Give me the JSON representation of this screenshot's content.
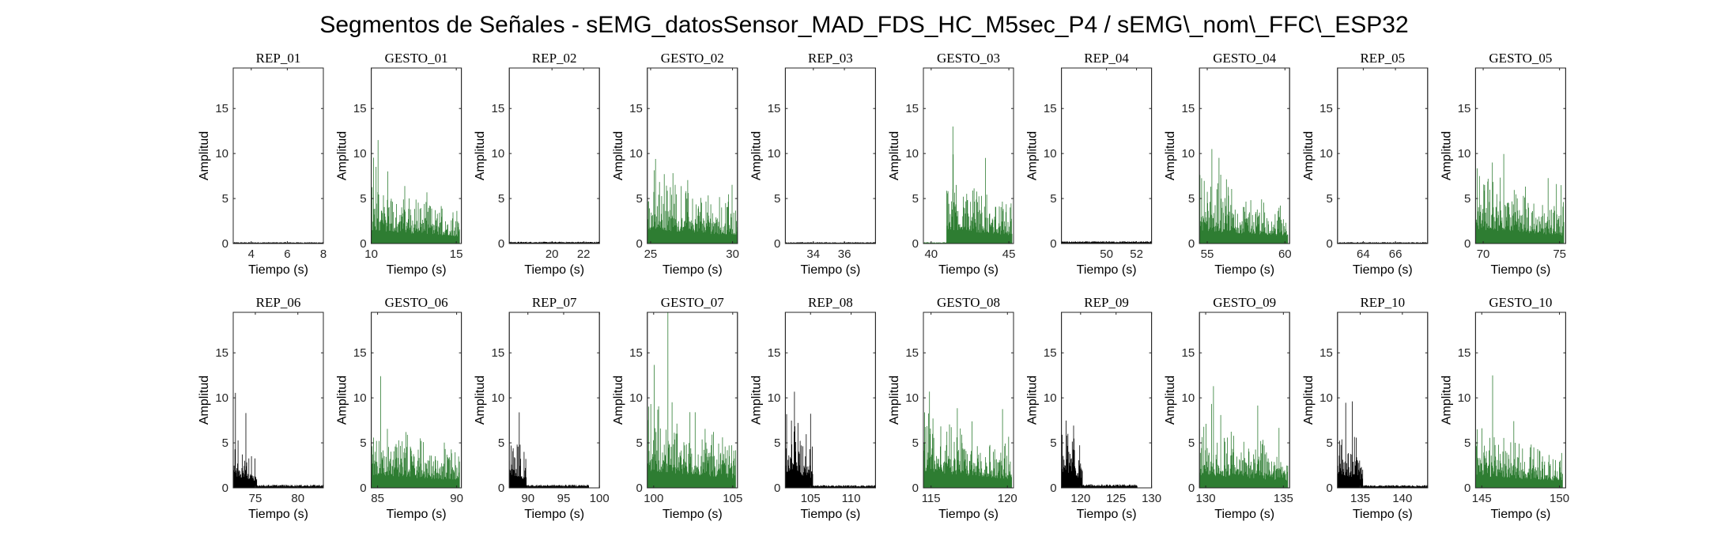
{
  "figure": {
    "title": "Segmentos de Señales - sEMG_datosSensor_MAD_FDS_HC_M5sec_P4 / sEMG\\_nom\\_FFC\\_ESP32"
  },
  "colors": {
    "rep": "#000000",
    "gesto": "#2e7d32",
    "axis": "#262626"
  },
  "chart_data": [
    {
      "type": "bar",
      "title": "REP_01",
      "kind": "rep",
      "xlabel": "Tiempo (s)",
      "ylabel": "Amplitud",
      "xlim": [
        3,
        8
      ],
      "ylim": [
        0,
        19.5
      ],
      "xticks": [
        4,
        6,
        8
      ],
      "yticks": [
        0,
        5,
        10,
        15
      ],
      "envelope": {
        "active": [
          [
            3,
            8,
            0.15
          ]
        ]
      }
    },
    {
      "type": "bar",
      "title": "GESTO_01",
      "kind": "gesto",
      "xlabel": "Tiempo (s)",
      "ylabel": "Amplitud",
      "xlim": [
        10,
        15.3
      ],
      "ylim": [
        0,
        19.5
      ],
      "xticks": [
        10,
        15
      ],
      "yticks": [
        0,
        5,
        10,
        15
      ],
      "envelope": {
        "active": [
          [
            10,
            15.2,
            4.5
          ]
        ],
        "peak": {
          "x": 10.4,
          "y": 11.5
        }
      }
    },
    {
      "type": "bar",
      "title": "REP_02",
      "kind": "rep",
      "xlabel": "Tiempo (s)",
      "ylabel": "Amplitud",
      "xlim": [
        17.3,
        23
      ],
      "ylim": [
        0,
        19.5
      ],
      "xticks": [
        20,
        22
      ],
      "yticks": [
        0,
        5,
        10,
        15
      ],
      "envelope": {
        "active": [
          [
            17.3,
            23,
            0.2
          ]
        ]
      }
    },
    {
      "type": "bar",
      "title": "GESTO_02",
      "kind": "gesto",
      "xlabel": "Tiempo (s)",
      "ylabel": "Amplitud",
      "xlim": [
        24.8,
        30.3
      ],
      "ylim": [
        0,
        19.5
      ],
      "xticks": [
        25,
        30
      ],
      "yticks": [
        0,
        5,
        10,
        15
      ],
      "envelope": {
        "active": [
          [
            24.8,
            30.3,
            5
          ]
        ],
        "peak": {
          "x": 25.3,
          "y": 9.4
        }
      }
    },
    {
      "type": "bar",
      "title": "REP_03",
      "kind": "rep",
      "xlabel": "Tiempo (s)",
      "ylabel": "Amplitud",
      "xlim": [
        32.2,
        38
      ],
      "ylim": [
        0,
        19.5
      ],
      "xticks": [
        34,
        36
      ],
      "yticks": [
        0,
        5,
        10,
        15
      ],
      "envelope": {
        "active": [
          [
            32.2,
            38,
            0.15
          ]
        ]
      }
    },
    {
      "type": "bar",
      "title": "GESTO_03",
      "kind": "gesto",
      "xlabel": "Tiempo (s)",
      "ylabel": "Amplitud",
      "xlim": [
        39.5,
        45.3
      ],
      "ylim": [
        0,
        19.5
      ],
      "xticks": [
        40,
        45
      ],
      "yticks": [
        0,
        5,
        10,
        15
      ],
      "envelope": {
        "quiet": [
          [
            39.5,
            41,
            0.15
          ]
        ],
        "active": [
          [
            41,
            45.2,
            5
          ]
        ],
        "peak": {
          "x": 41.4,
          "y": 13
        }
      }
    },
    {
      "type": "bar",
      "title": "REP_04",
      "kind": "rep",
      "xlabel": "Tiempo (s)",
      "ylabel": "Amplitud",
      "xlim": [
        47,
        53
      ],
      "ylim": [
        0,
        19.5
      ],
      "xticks": [
        50,
        52
      ],
      "yticks": [
        0,
        5,
        10,
        15
      ],
      "envelope": {
        "active": [
          [
            47,
            53,
            0.25
          ]
        ]
      }
    },
    {
      "type": "bar",
      "title": "GESTO_04",
      "kind": "gesto",
      "xlabel": "Tiempo (s)",
      "ylabel": "Amplitud",
      "xlim": [
        54.5,
        60.3
      ],
      "ylim": [
        0,
        19.5
      ],
      "xticks": [
        55,
        60
      ],
      "yticks": [
        0,
        5,
        10,
        15
      ],
      "envelope": {
        "active": [
          [
            54.5,
            60.2,
            4.5
          ]
        ],
        "peak": {
          "x": 55.3,
          "y": 10.5
        }
      }
    },
    {
      "type": "bar",
      "title": "REP_05",
      "kind": "rep",
      "xlabel": "Tiempo (s)",
      "ylabel": "Amplitud",
      "xlim": [
        62.4,
        68
      ],
      "ylim": [
        0,
        19.5
      ],
      "xticks": [
        64,
        66
      ],
      "yticks": [
        0,
        5,
        10,
        15
      ],
      "envelope": {
        "active": [
          [
            62.4,
            68,
            0.15
          ]
        ]
      }
    },
    {
      "type": "bar",
      "title": "GESTO_05",
      "kind": "gesto",
      "xlabel": "Tiempo (s)",
      "ylabel": "Amplitud",
      "xlim": [
        69.5,
        75.4
      ],
      "ylim": [
        0,
        19.5
      ],
      "xticks": [
        70,
        75
      ],
      "yticks": [
        0,
        5,
        10,
        15
      ],
      "envelope": {
        "active": [
          [
            69.5,
            75.3,
            5
          ]
        ],
        "peak": {
          "x": 70.6,
          "y": 9
        }
      }
    },
    {
      "type": "bar",
      "title": "REP_06",
      "kind": "rep",
      "xlabel": "Tiempo (s)",
      "ylabel": "Amplitud",
      "xlim": [
        72.4,
        83
      ],
      "ylim": [
        0,
        19.5
      ],
      "xticks": [
        75,
        80
      ],
      "yticks": [
        0,
        5,
        10,
        15
      ],
      "envelope": {
        "active": [
          [
            72.4,
            75.2,
            4.2
          ]
        ],
        "quiet": [
          [
            75.2,
            83,
            0.35
          ]
        ]
      }
    },
    {
      "type": "bar",
      "title": "GESTO_06",
      "kind": "gesto",
      "xlabel": "Tiempo (s)",
      "ylabel": "Amplitud",
      "xlim": [
        84.6,
        90.3
      ],
      "ylim": [
        0,
        19.5
      ],
      "xticks": [
        85,
        90
      ],
      "yticks": [
        0,
        5,
        10,
        15
      ],
      "envelope": {
        "active": [
          [
            84.6,
            90.2,
            4.5
          ]
        ],
        "peak": {
          "x": 85.2,
          "y": 12.4
        }
      }
    },
    {
      "type": "bar",
      "title": "REP_07",
      "kind": "rep",
      "xlabel": "Tiempo (s)",
      "ylabel": "Amplitud",
      "xlim": [
        87.4,
        100
      ],
      "ylim": [
        0,
        19.5
      ],
      "xticks": [
        90,
        95,
        100
      ],
      "yticks": [
        0,
        5,
        10,
        15
      ],
      "envelope": {
        "active": [
          [
            87.4,
            89.8,
            4.8
          ]
        ],
        "quiet": [
          [
            89.8,
            98.5,
            0.35
          ]
        ]
      }
    },
    {
      "type": "bar",
      "title": "GESTO_07",
      "kind": "gesto",
      "xlabel": "Tiempo (s)",
      "ylabel": "Amplitud",
      "xlim": [
        99.6,
        105.3
      ],
      "ylim": [
        0,
        19.5
      ],
      "xticks": [
        100,
        105
      ],
      "yticks": [
        0,
        5,
        10,
        15
      ],
      "envelope": {
        "active": [
          [
            99.6,
            105.2,
            6
          ]
        ],
        "peak": {
          "x": 100.9,
          "y": 19.5
        }
      }
    },
    {
      "type": "bar",
      "title": "REP_08",
      "kind": "rep",
      "xlabel": "Tiempo (s)",
      "ylabel": "Amplitud",
      "xlim": [
        101.9,
        113
      ],
      "ylim": [
        0,
        19.5
      ],
      "xticks": [
        105,
        110
      ],
      "yticks": [
        0,
        5,
        10,
        15
      ],
      "envelope": {
        "active": [
          [
            101.9,
            105.3,
            5.8
          ]
        ],
        "quiet": [
          [
            105.3,
            113,
            0.3
          ]
        ]
      }
    },
    {
      "type": "bar",
      "title": "GESTO_08",
      "kind": "gesto",
      "xlabel": "Tiempo (s)",
      "ylabel": "Amplitud",
      "xlim": [
        114.5,
        120.4
      ],
      "ylim": [
        0,
        19.5
      ],
      "xticks": [
        115,
        120
      ],
      "yticks": [
        0,
        5,
        10,
        15
      ],
      "envelope": {
        "active": [
          [
            114.5,
            120.3,
            5.5
          ]
        ],
        "peak": {
          "x": 114.9,
          "y": 10.7
        }
      }
    },
    {
      "type": "bar",
      "title": "REP_09",
      "kind": "rep",
      "xlabel": "Tiempo (s)",
      "ylabel": "Amplitud",
      "xlim": [
        117.3,
        130
      ],
      "ylim": [
        0,
        19.5
      ],
      "xticks": [
        120,
        125,
        130
      ],
      "yticks": [
        0,
        5,
        10,
        15
      ],
      "envelope": {
        "active": [
          [
            117.3,
            120.3,
            5.5
          ]
        ],
        "quiet": [
          [
            120.3,
            128,
            0.4
          ]
        ]
      }
    },
    {
      "type": "bar",
      "title": "GESTO_09",
      "kind": "gesto",
      "xlabel": "Tiempo (s)",
      "ylabel": "Amplitud",
      "xlim": [
        129.6,
        135.4
      ],
      "ylim": [
        0,
        19.5
      ],
      "xticks": [
        130,
        135
      ],
      "yticks": [
        0,
        5,
        10,
        15
      ],
      "envelope": {
        "active": [
          [
            129.6,
            135.3,
            4.5
          ]
        ],
        "peak": {
          "x": 130.5,
          "y": 11.3
        }
      }
    },
    {
      "type": "bar",
      "title": "REP_10",
      "kind": "rep",
      "xlabel": "Tiempo (s)",
      "ylabel": "Amplitud",
      "xlim": [
        132.3,
        143
      ],
      "ylim": [
        0,
        19.5
      ],
      "xticks": [
        135,
        140
      ],
      "yticks": [
        0,
        5,
        10,
        15
      ],
      "envelope": {
        "active": [
          [
            132.3,
            135.3,
            5
          ]
        ],
        "quiet": [
          [
            135.3,
            143,
            0.3
          ]
        ]
      }
    },
    {
      "type": "bar",
      "title": "GESTO_10",
      "kind": "gesto",
      "xlabel": "Tiempo (s)",
      "ylabel": "Amplitud",
      "xlim": [
        144.6,
        150.4
      ],
      "ylim": [
        0,
        19.5
      ],
      "xticks": [
        145,
        150
      ],
      "yticks": [
        0,
        5,
        10,
        15
      ],
      "envelope": {
        "active": [
          [
            144.6,
            150.2,
            4.2
          ]
        ],
        "peak": {
          "x": 145.7,
          "y": 12.5
        }
      }
    }
  ]
}
